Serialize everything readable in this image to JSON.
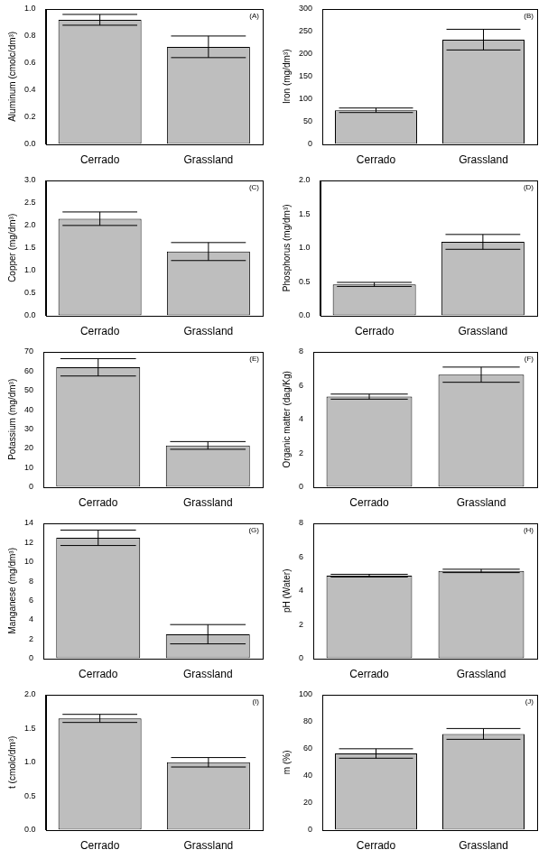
{
  "chart_data": [
    {
      "type": "bar",
      "annotation": "(A)",
      "y_label": "Aluminum (cmolc/dm³)",
      "categories": [
        "Cerrado",
        "Grassland"
      ],
      "values": [
        0.92,
        0.72
      ],
      "errors": [
        0.04,
        0.08
      ],
      "color": "#bebebe",
      "ylim": [
        0,
        1
      ],
      "yticks": [
        {
          "value": 0,
          "label": "0.0"
        },
        0.2,
        0.4,
        0.6,
        0.8,
        {
          "value": 1,
          "label": "1.0"
        }
      ],
      "grid": false
    },
    {
      "type": "bar",
      "annotation": "(B)",
      "y_label": "Iron (mg/dm³)",
      "categories": [
        "Cerrado",
        "Grassland"
      ],
      "values": [
        75,
        232
      ],
      "errors": [
        5,
        23
      ],
      "color": "#bebebe",
      "ylim": [
        0,
        300
      ],
      "yticks": [
        0,
        50,
        100,
        150,
        200,
        250,
        300
      ],
      "grid": false
    },
    {
      "type": "bar",
      "annotation": "(C)",
      "y_label": "Copper (mg/dm³)",
      "categories": [
        "Cerrado",
        "Grassland"
      ],
      "values": [
        2.15,
        1.42
      ],
      "errors": [
        0.15,
        0.2
      ],
      "color": "#bebebe",
      "ylim": [
        0,
        3
      ],
      "yticks": [
        {
          "value": 0,
          "label": "0.0"
        },
        0.5,
        {
          "value": 1,
          "label": "1.0"
        },
        1.5,
        {
          "value": 2,
          "label": "2.0"
        },
        2.5,
        {
          "value": 3,
          "label": "3.0"
        }
      ],
      "grid": false
    },
    {
      "type": "bar",
      "annotation": "(D)",
      "y_label": "Phosphorus (mg/dm³)",
      "categories": [
        "Cerrado",
        "Grassland"
      ],
      "values": [
        0.46,
        1.09
      ],
      "errors": [
        0.03,
        0.11
      ],
      "color": "#bebebe",
      "ylim": [
        0,
        2
      ],
      "yticks": [
        {
          "value": 0,
          "label": "0.0"
        },
        0.5,
        {
          "value": 1,
          "label": "1.0"
        },
        1.5,
        {
          "value": 2,
          "label": "2.0"
        }
      ],
      "grid": false
    },
    {
      "type": "bar",
      "annotation": "(E)",
      "y_label": "Potassium (mg/dm³)",
      "categories": [
        "Cerrado",
        "Grassland"
      ],
      "values": [
        62,
        21.5
      ],
      "errors": [
        4.5,
        2
      ],
      "color": "#bebebe",
      "ylim": [
        0,
        70
      ],
      "yticks": [
        0,
        10,
        20,
        30,
        40,
        50,
        60,
        70
      ],
      "grid": false
    },
    {
      "type": "bar",
      "annotation": "(F)",
      "y_label": "Organic matter (dag/Kg)",
      "categories": [
        "Cerrado",
        "Grassland"
      ],
      "values": [
        5.35,
        6.65
      ],
      "errors": [
        0.15,
        0.45
      ],
      "color": "#bebebe",
      "ylim": [
        0,
        8
      ],
      "yticks": [
        0,
        2,
        4,
        6,
        8
      ],
      "grid": false
    },
    {
      "type": "bar",
      "annotation": "(G)",
      "y_label": "Manganese (mg/dm³)",
      "categories": [
        "Cerrado",
        "Grassland"
      ],
      "values": [
        12.5,
        2.5
      ],
      "errors": [
        0.8,
        1
      ],
      "color": "#bebebe",
      "ylim": [
        0,
        14
      ],
      "yticks": [
        0,
        2,
        4,
        6,
        8,
        10,
        12,
        14
      ],
      "grid": false
    },
    {
      "type": "bar",
      "annotation": "(H)",
      "y_label": "pH (Water)",
      "categories": [
        "Cerrado",
        "Grassland"
      ],
      "values": [
        4.9,
        5.18
      ],
      "errors": [
        0.08,
        0.1
      ],
      "color": "#bebebe",
      "ylim": [
        0,
        8
      ],
      "yticks": [
        0,
        2,
        4,
        6,
        8
      ],
      "grid": false
    },
    {
      "type": "bar",
      "annotation": "(I)",
      "y_label": "t (cmolc/dm³)",
      "categories": [
        "Cerrado",
        "Grassland"
      ],
      "values": [
        1.65,
        1
      ],
      "errors": [
        0.06,
        0.07
      ],
      "color": "#bebebe",
      "ylim": [
        0,
        2
      ],
      "yticks": [
        {
          "value": 0,
          "label": "0.0"
        },
        0.5,
        {
          "value": 1,
          "label": "1.0"
        },
        1.5,
        {
          "value": 2,
          "label": "2.0"
        }
      ],
      "grid": false
    },
    {
      "type": "bar",
      "annotation": "(J)",
      "y_label": "m (%)",
      "categories": [
        "Cerrado",
        "Grassland"
      ],
      "values": [
        56.5,
        71
      ],
      "errors": [
        3.5,
        4
      ],
      "color": "#bebebe",
      "ylim": [
        0,
        100
      ],
      "yticks": [
        0,
        20,
        40,
        60,
        80,
        100
      ],
      "grid": false
    }
  ]
}
